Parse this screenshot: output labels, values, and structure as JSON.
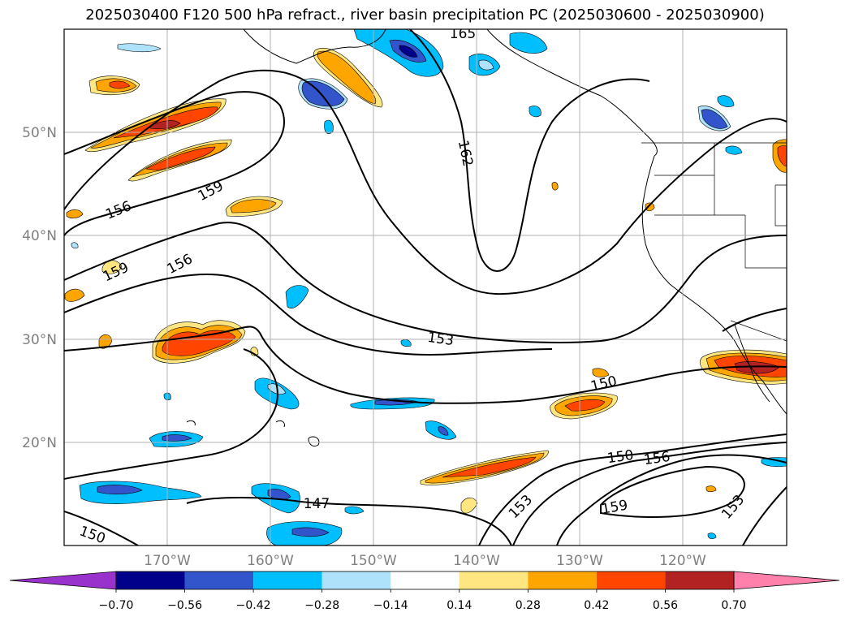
{
  "title": "2025030400 F120 500 hPa refract., river basin precipitation PC (2025030600 - 2025030900)",
  "map": {
    "lat_labels": [
      "50°N",
      "40°N",
      "30°N",
      "20°N"
    ],
    "lon_labels": [
      "170°W",
      "160°W",
      "150°W",
      "140°W",
      "130°W",
      "120°W"
    ],
    "contour_labels": [
      "165",
      "162",
      "159",
      "156",
      "156",
      "159",
      "153",
      "150",
      "156",
      "150",
      "159",
      "153",
      "153",
      "147",
      "150"
    ],
    "grid": true
  },
  "colorbar": {
    "ticks": [
      "−0.70",
      "−0.56",
      "−0.42",
      "−0.28",
      "−0.14",
      "0.14",
      "0.28",
      "0.42",
      "0.56",
      "0.70"
    ],
    "colors": [
      "#9932cc",
      "#00008b",
      "#3355cc",
      "#00bfff",
      "#aee2fa",
      "#ffffff",
      "#ffe680",
      "#ffa500",
      "#ff4500",
      "#b22222",
      "#ff80aa"
    ]
  }
}
